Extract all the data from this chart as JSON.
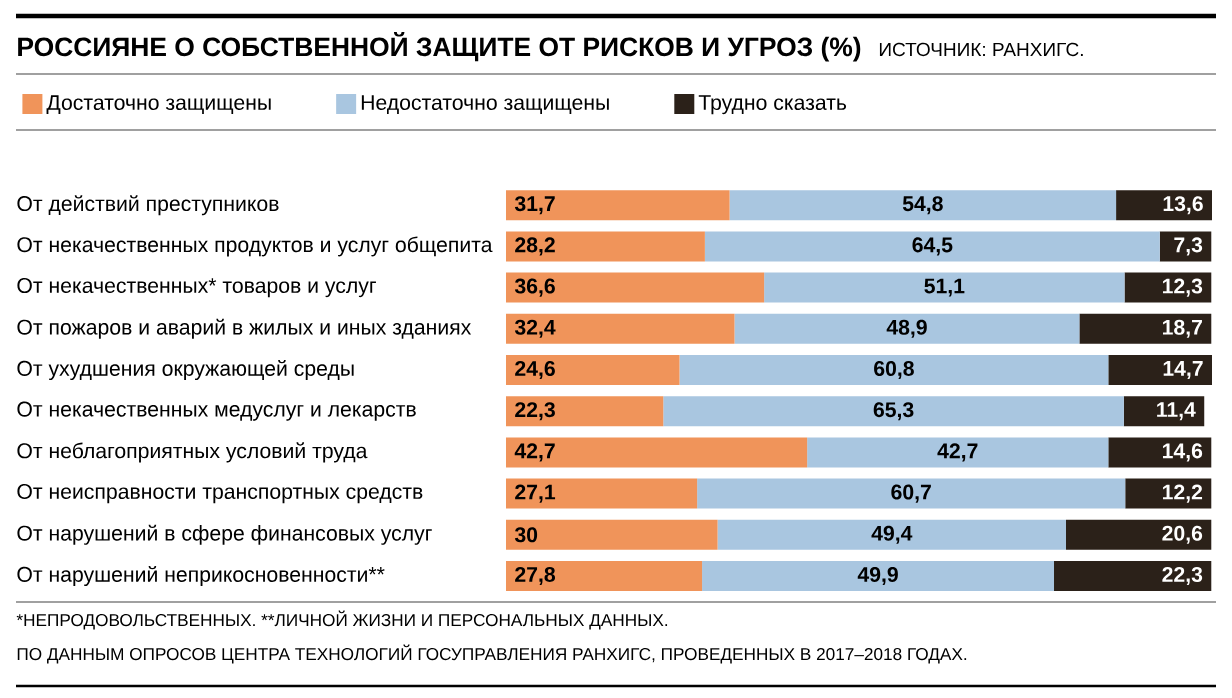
{
  "chart_data": {
    "type": "bar",
    "orientation": "horizontal",
    "stacked": true,
    "legend": "top",
    "title": "РОССИЯНЕ О СОБСТВЕННОЙ ЗАЩИТЕ ОТ РИСКОВ И УГРОЗ (%)",
    "annotations": [
      "ИСТОЧНИК: РАНХИГС.",
      "*НЕПРОДОВОЛЬСТВЕННЫХ. **ЛИЧНОЙ ЖИЗНИ И ПЕРСОНАЛЬНЫХ ДАННЫХ.",
      "ПО ДАННЫМ ОПРОСОВ ЦЕНТРА ТЕХНОЛОГИЙ ГОСУПРАВЛЕНИЯ РАНХИГС, ПРОВЕДЕННЫХ В 2017–2018 ГОДАХ."
    ],
    "categories": [
      "От действий преступников",
      "От некачественных продуктов и услуг общепита",
      "От некачественных* товаров и услуг",
      "От пожаров и аварий в жилых и иных зданиях",
      "От ухудшения окружающей среды",
      "От некачественных медуслуг и лекарств",
      "От неблагоприятных условий труда",
      "От неисправности транспортных средств",
      "От нарушений в сфере финансовых услуг",
      "От нарушений неприкосновенности**"
    ],
    "series": [
      {
        "name": "Достаточно защищены",
        "color": "#f0945a",
        "values": [
          31.7,
          28.2,
          36.6,
          32.4,
          24.6,
          22.3,
          42.7,
          27.1,
          30,
          27.8
        ],
        "value_labels": [
          "31,7",
          "28,2",
          "36,6",
          "32,4",
          "24,6",
          "22,3",
          "42,7",
          "27,1",
          "30",
          "27,8"
        ]
      },
      {
        "name": "Недостаточно защищены",
        "color": "#a9c6e0",
        "values": [
          54.8,
          64.5,
          51.1,
          48.9,
          60.8,
          65.3,
          42.7,
          60.7,
          49.4,
          49.9
        ],
        "value_labels": [
          "54,8",
          "64,5",
          "51,1",
          "48,9",
          "60,8",
          "65,3",
          "42,7",
          "60,7",
          "49,4",
          "49,9"
        ]
      },
      {
        "name": "Трудно сказать",
        "color": "#2b2119",
        "values": [
          13.6,
          7.3,
          12.3,
          18.7,
          14.7,
          11.4,
          14.6,
          12.2,
          20.6,
          22.3
        ],
        "value_labels": [
          "13,6",
          "7,3",
          "12,3",
          "18,7",
          "14,7",
          "11,4",
          "14,6",
          "12,2",
          "20,6",
          "22,3"
        ]
      }
    ]
  }
}
